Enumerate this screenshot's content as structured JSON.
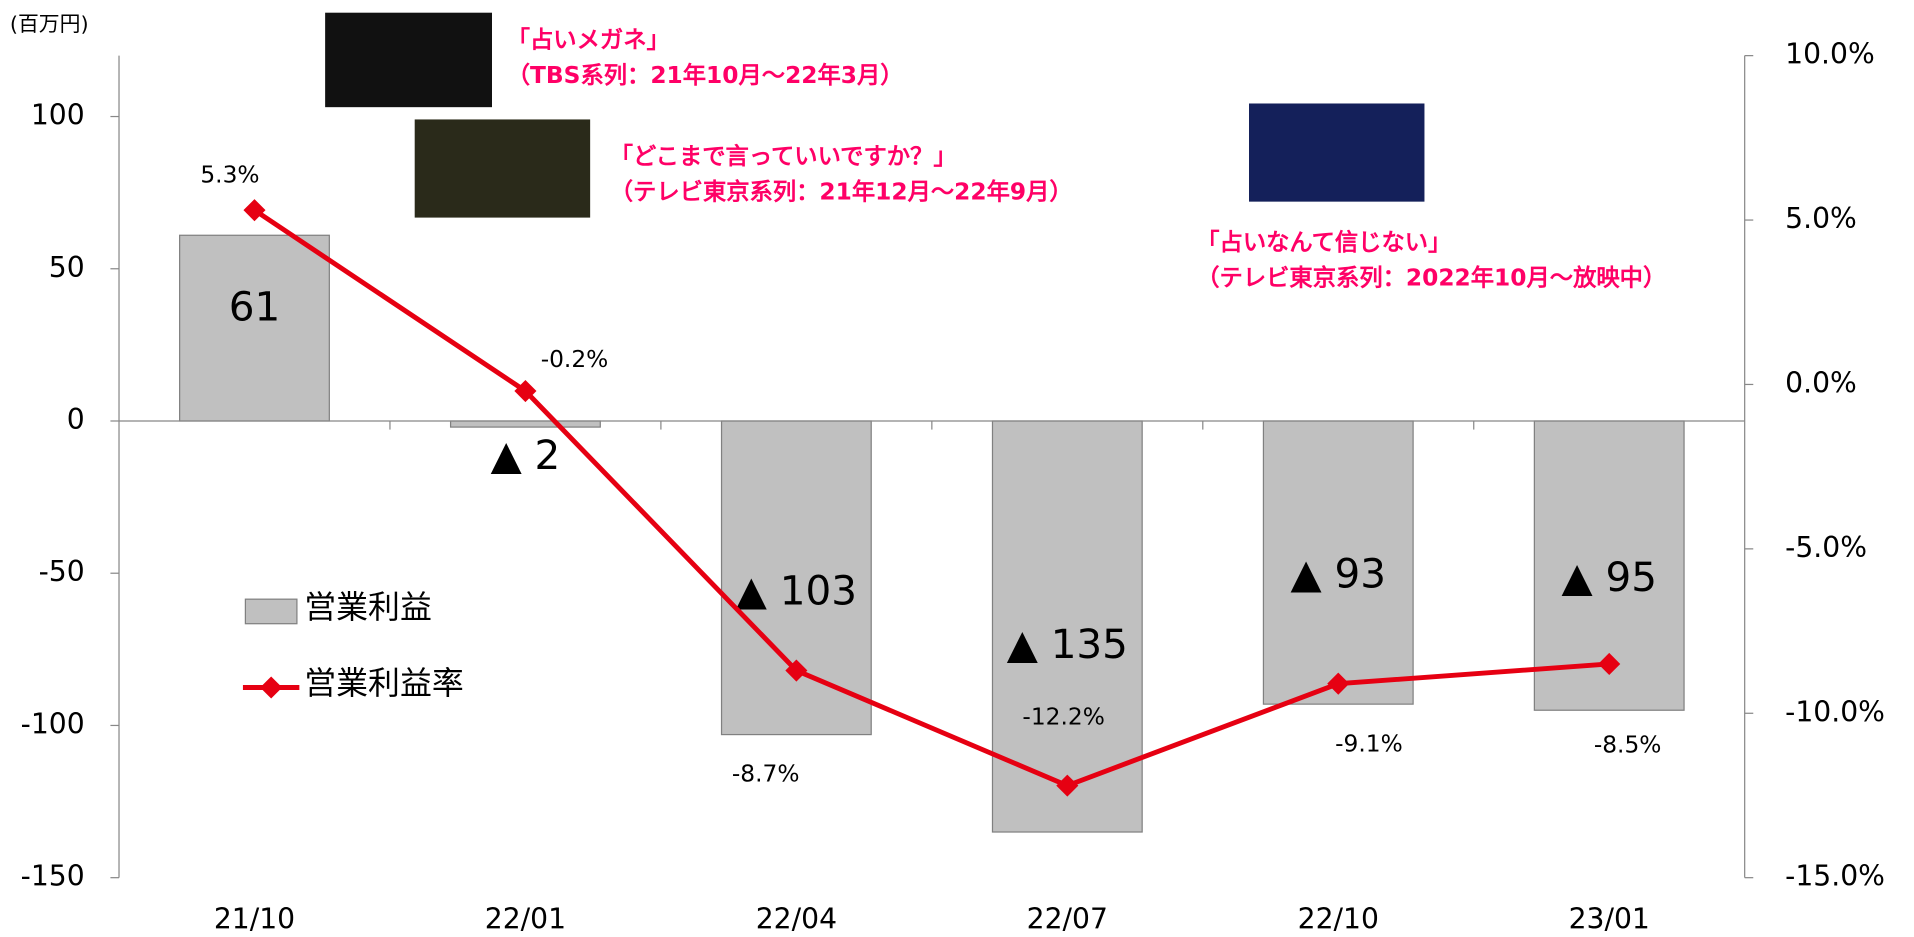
{
  "chart_data": {
    "type": "bar_line",
    "unit_label": "(百万円)",
    "categories": [
      "21/10",
      "22/01",
      "22/04",
      "22/07",
      "22/10",
      "23/01"
    ],
    "series": [
      {
        "name": "営業利益",
        "type": "bar",
        "color": "#c0c0c0",
        "values": [
          61,
          -2,
          -103,
          -135,
          -93,
          -95
        ],
        "value_labels": [
          "61",
          "▲ 2",
          "▲ 103",
          "▲ 135",
          "▲ 93",
          "▲ 95"
        ]
      },
      {
        "name": "営業利益率",
        "type": "line",
        "axis": "y2",
        "color": "#e60012",
        "values": [
          5.3,
          -0.2,
          -8.7,
          -12.2,
          -9.1,
          -8.5
        ],
        "value_labels": [
          "5.3%",
          "-0.2%",
          "-8.7%",
          "-12.2%",
          "-9.1%",
          "-8.5%"
        ]
      }
    ],
    "ylim": [
      -150,
      120
    ],
    "yticks": [
      -150,
      -100,
      -50,
      0,
      50,
      100
    ],
    "y2lim": [
      -15,
      10
    ],
    "y2ticks": [
      {
        "value": -15,
        "label": "-15.0%"
      },
      {
        "value": -10,
        "label": "-10.0%"
      },
      {
        "value": -5,
        "label": "-5.0%"
      },
      {
        "value": 0,
        "label": "0.0%"
      },
      {
        "value": 5,
        "label": "5.0%"
      },
      {
        "value": 10,
        "label": "10.0%"
      }
    ],
    "annotations": [
      [
        "「占いメガネ」",
        "（TBS系列：21年10月～22年3月）"
      ],
      [
        "「どこまで言っていいですか？」",
        "（テレビ東京系列：21年12月～22年9月）"
      ],
      [
        "「占いなんて信じない」",
        "（テレビ東京系列：2022年10月～放映中）"
      ]
    ]
  }
}
